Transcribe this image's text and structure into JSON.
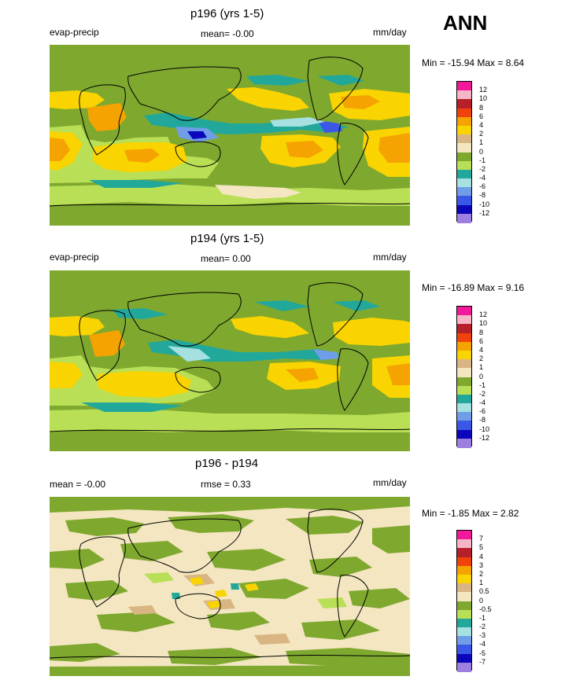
{
  "header": {
    "season": "ANN"
  },
  "colors": {
    "land_green": "#7fa72f",
    "ocean_cream": "#f4e6c3",
    "light_green": "#b7dd56",
    "yellow": "#f8d201",
    "orange": "#f4a002",
    "teal": "#23a99a"
  },
  "chart_data": [
    {
      "type": "heatmap",
      "title": "p196 (yrs 1-5)",
      "variable": "evap-precip",
      "mean_text": "mean=  -0.00",
      "units": "mm/day",
      "minmax_text": "Min = -15.94 Max =   8.64",
      "legend_levels": [
        "12",
        "10",
        "8",
        "6",
        "4",
        "2",
        "1",
        "0",
        "-1",
        "-2",
        "-4",
        "-6",
        "-8",
        "-10",
        "-12"
      ],
      "legend_colors": [
        "#f2189a",
        "#f7b6c7",
        "#b71f2b",
        "#f0420c",
        "#f5a300",
        "#f9d400",
        "#d8b583",
        "#f3e6c0",
        "#7fa82f",
        "#b8df56",
        "#21a89b",
        "#a6e0e0",
        "#6f9de8",
        "#3a57e6",
        "#0b06b9",
        "#9c7fe1"
      ]
    },
    {
      "type": "heatmap",
      "title": "p194 (yrs 1-5)",
      "variable": "evap-precip",
      "mean_text": "mean=   0.00",
      "units": "mm/day",
      "minmax_text": "Min = -16.89 Max =   9.16",
      "legend_levels": [
        "12",
        "10",
        "8",
        "6",
        "4",
        "2",
        "1",
        "0",
        "-1",
        "-2",
        "-4",
        "-6",
        "-8",
        "-10",
        "-12"
      ],
      "legend_colors": [
        "#f2189a",
        "#f7b6c7",
        "#b71f2b",
        "#f0420c",
        "#f5a300",
        "#f9d400",
        "#d8b583",
        "#f3e6c0",
        "#7fa82f",
        "#b8df56",
        "#21a89b",
        "#a6e0e0",
        "#6f9de8",
        "#3a57e6",
        "#0b06b9",
        "#9c7fe1"
      ]
    },
    {
      "type": "heatmap",
      "title": "p196 - p194",
      "variable": "",
      "mean_text": "mean =  -0.00",
      "rmse_text": "rmse =   0.33",
      "units": "mm/day",
      "minmax_text": "Min =  -1.85 Max =   2.82",
      "legend_levels": [
        "7",
        "5",
        "4",
        "3",
        "2",
        "1",
        "0.5",
        "0",
        "-0.5",
        "-1",
        "-2",
        "-3",
        "-4",
        "-5",
        "-7"
      ],
      "legend_colors": [
        "#f2189a",
        "#f7b6c7",
        "#b71f2b",
        "#f0420c",
        "#f5a300",
        "#f9d400",
        "#d8b583",
        "#f3e6c0",
        "#7fa82f",
        "#b8df56",
        "#21a89b",
        "#a6e0e0",
        "#6f9de8",
        "#3a57e6",
        "#0b06b9",
        "#9c7fe1"
      ]
    }
  ]
}
